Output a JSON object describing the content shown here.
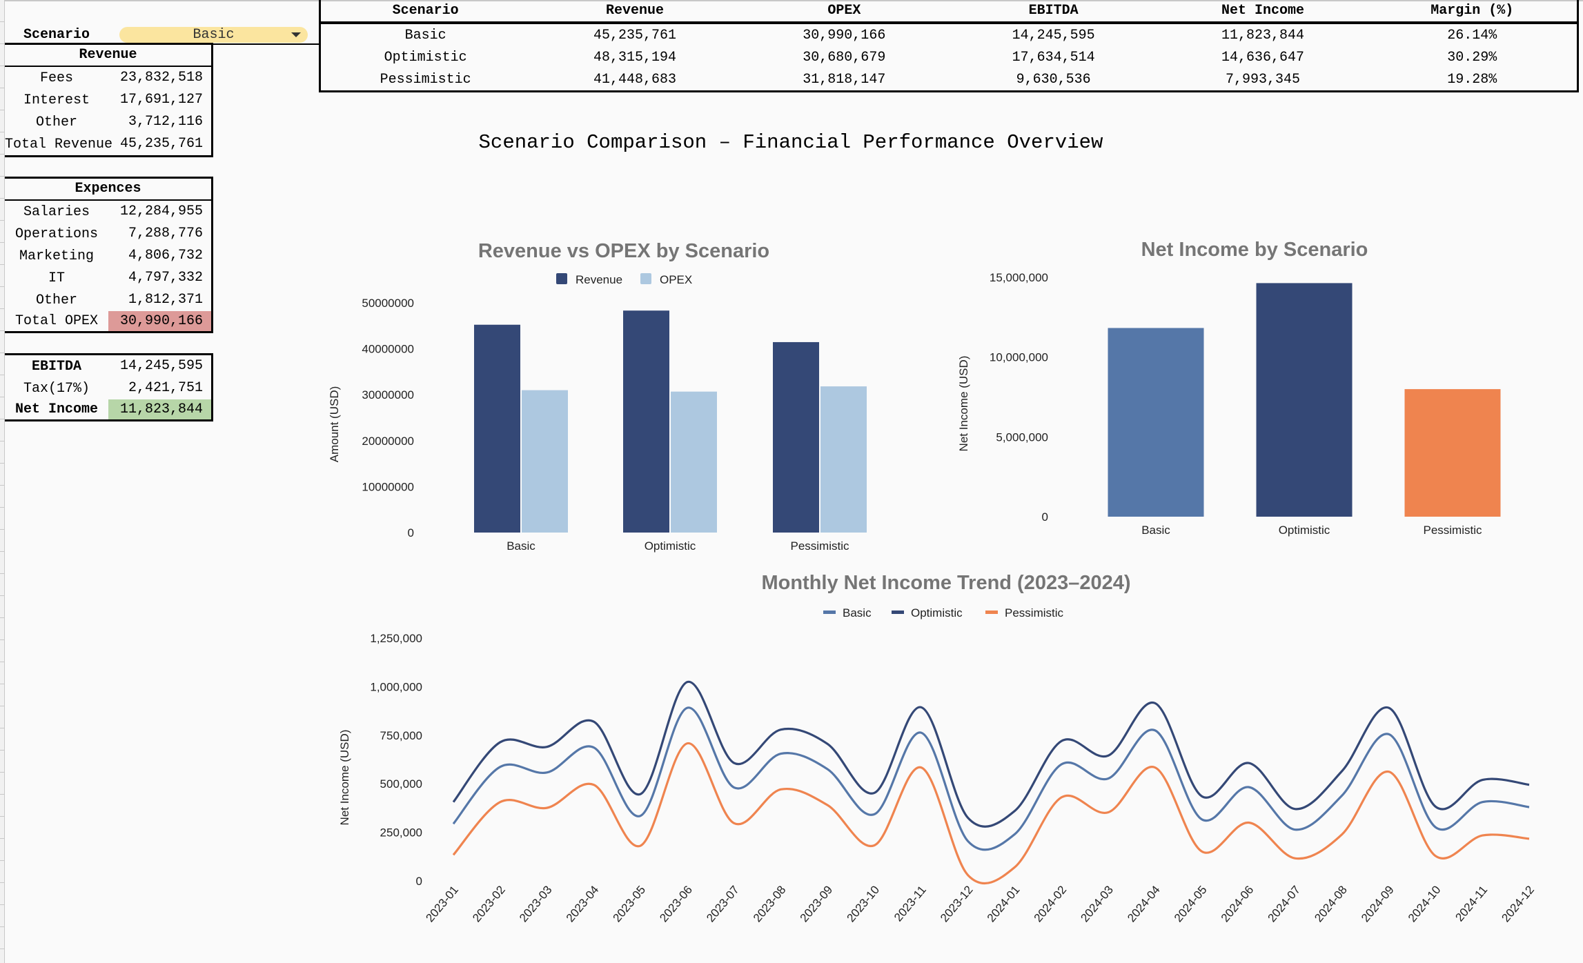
{
  "scenario_selector": {
    "label": "Scenario",
    "value": "Basic"
  },
  "revenue_box": {
    "title": "Revenue",
    "rows": [
      {
        "label": "Fees",
        "value": "23,832,518"
      },
      {
        "label": "Interest",
        "value": "17,691,127"
      },
      {
        "label": "Other",
        "value": "3,712,116"
      },
      {
        "label": "Total Revenue",
        "value": "45,235,761"
      }
    ]
  },
  "expenses_box": {
    "title": "Expences",
    "rows": [
      {
        "label": "Salaries",
        "value": "12,284,955"
      },
      {
        "label": "Operations",
        "value": "7,288,776"
      },
      {
        "label": "Marketing",
        "value": "4,806,732"
      },
      {
        "label": "IT",
        "value": "4,797,332"
      },
      {
        "label": "Other",
        "value": "1,812,371"
      },
      {
        "label": "Total OPEX",
        "value": "30,990,166"
      }
    ]
  },
  "result_box": {
    "rows": [
      {
        "label": "EBITDA",
        "value": "14,245,595"
      },
      {
        "label": "Tax(17%)",
        "value": "2,421,751"
      },
      {
        "label": "Net Income",
        "value": "11,823,844"
      }
    ]
  },
  "summary_table": {
    "headers": [
      "Scenario",
      "Revenue",
      "OPEX",
      "EBITDA",
      "Net Income",
      "Margin (%)"
    ],
    "rows": [
      [
        "Basic",
        "45,235,761",
        "30,990,166",
        "14,245,595",
        "11,823,844",
        "26.14%"
      ],
      [
        "Optimistic",
        "48,315,194",
        "30,680,679",
        "17,634,514",
        "14,636,647",
        "30.29%"
      ],
      [
        "Pessimistic",
        "41,448,683",
        "31,818,147",
        "9,630,536",
        "7,993,345",
        "19.28%"
      ]
    ]
  },
  "dashboard_title": "Scenario Comparison – Financial Performance Overview",
  "colors": {
    "revenue": "#344876",
    "opex": "#adc8e0",
    "basic": "#5577a8",
    "optimistic": "#344876",
    "pessimistic": "#ef844f",
    "selected_dropdown": "#fbe59f",
    "opex_highlight": "#dd9a98",
    "net_income_highlight": "#b7d6a8"
  },
  "chart_data": [
    {
      "type": "bar",
      "title": "Revenue vs OPEX by Scenario",
      "categories": [
        "Basic",
        "Optimistic",
        "Pessimistic"
      ],
      "series": [
        {
          "name": "Revenue",
          "values": [
            45235761,
            48315194,
            41448683
          ]
        },
        {
          "name": "OPEX",
          "values": [
            30990166,
            30680679,
            31818147
          ]
        }
      ],
      "xlabel": "",
      "ylabel": "Amount (USD)",
      "ylim": [
        0,
        50000000
      ],
      "yticks": [
        "0",
        "10000000",
        "20000000",
        "30000000",
        "40000000",
        "50000000"
      ],
      "legend": "top",
      "grid": false
    },
    {
      "type": "bar",
      "title": "Net Income by Scenario",
      "categories": [
        "Basic",
        "Optimistic",
        "Pessimistic"
      ],
      "values": [
        11823844,
        14636647,
        7993345
      ],
      "xlabel": "",
      "ylabel": "Net Income (USD)",
      "ylim": [
        0,
        15000000
      ],
      "yticks": [
        "0",
        "5,000,000",
        "10,000,000",
        "15,000,000"
      ],
      "grid": false
    },
    {
      "type": "line",
      "title": "Monthly Net Income Trend (2023–2024)",
      "x": [
        "2023-01",
        "2023-02",
        "2023-03",
        "2023-04",
        "2023-05",
        "2023-06",
        "2023-07",
        "2023-08",
        "2023-09",
        "2023-10",
        "2023-11",
        "2023-12",
        "2024-01",
        "2024-02",
        "2024-03",
        "2024-04",
        "2024-05",
        "2024-06",
        "2024-07",
        "2024-08",
        "2024-09",
        "2024-10",
        "2024-11",
        "2024-12"
      ],
      "series": [
        {
          "name": "Basic",
          "values": [
            294000,
            587000,
            558000,
            687000,
            335000,
            891000,
            481000,
            655000,
            575000,
            343000,
            763000,
            205000,
            240000,
            600000,
            527000,
            775000,
            317000,
            483000,
            264000,
            440000,
            755000,
            276000,
            406000,
            380000
          ]
        },
        {
          "name": "Optimistic",
          "values": [
            406000,
            714000,
            690000,
            820000,
            447000,
            1024000,
            607000,
            779000,
            705000,
            453000,
            894000,
            325000,
            360000,
            720000,
            645000,
            915000,
            436000,
            607000,
            370000,
            566000,
            891000,
            382000,
            520000,
            495000
          ]
        },
        {
          "name": "Pessimistic",
          "values": [
            134000,
            406000,
            376000,
            495000,
            181000,
            708000,
            297000,
            471000,
            390000,
            183000,
            584000,
            30000,
            70000,
            430000,
            353000,
            584000,
            152000,
            300000,
            116000,
            240000,
            562000,
            128000,
            234000,
            217000
          ]
        }
      ],
      "xlabel": "",
      "ylabel": "Net Income (USD)",
      "ylim": [
        0,
        1250000
      ],
      "yticks": [
        "0",
        "250,000",
        "500,000",
        "750,000",
        "1,000,000",
        "1,250,000"
      ],
      "legend": "top",
      "grid": false
    }
  ]
}
